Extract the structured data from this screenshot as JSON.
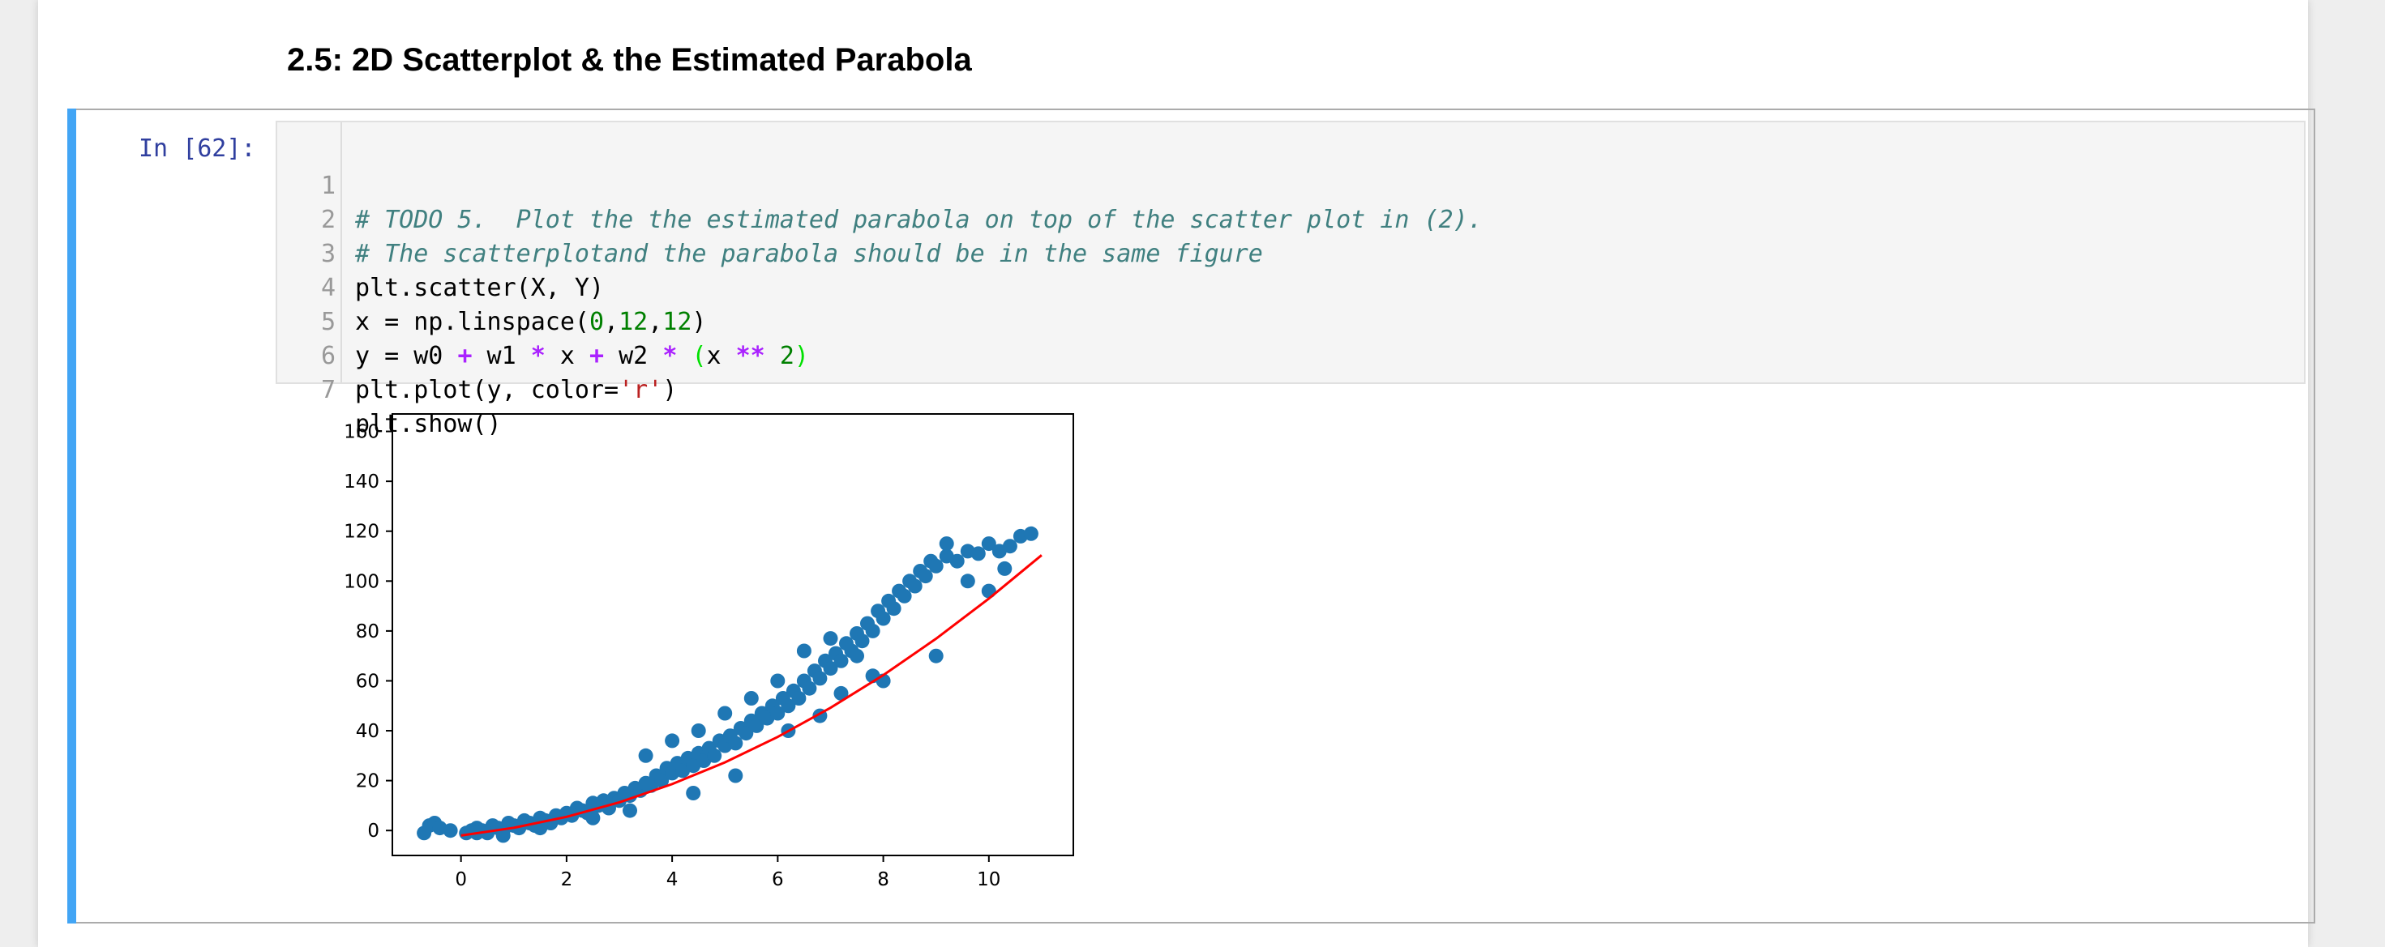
{
  "notebook": {
    "heading": "2.5: 2D Scatterplot & the Estimated Parabola",
    "cell": {
      "prompt": "In [62]:",
      "line_numbers": [
        "1",
        "2",
        "3",
        "4",
        "5",
        "6",
        "7"
      ],
      "code": {
        "line1": "# TODO 5.  Plot the the estimated parabola on top of the scatter plot in (2).",
        "line2": "# The scatterplotand the parabola should be in the same figure",
        "line3": "plt.scatter(X, Y)",
        "line4": {
          "a": "x = np.linspace(",
          "n1": "0",
          "c1": ",",
          "n2": "12",
          "c2": ",",
          "n3": "12",
          "b": ")"
        },
        "line5": {
          "a": "y = w0 ",
          "op1": "+",
          "b": " w1 ",
          "op2": "*",
          "c": " x ",
          "op3": "+",
          "d": " w2 ",
          "op4": "*",
          "e": " ",
          "p1": "(",
          "f": "x ",
          "op5": "**",
          "g": " ",
          "n": "2",
          "p2": ")"
        },
        "line6": {
          "a": "plt.plot(y, color=",
          "s": "'r'",
          "b": ")"
        },
        "line7": "plt.show()"
      }
    }
  },
  "chart_data": {
    "type": "scatter",
    "title": "",
    "xlabel": "",
    "ylabel": "",
    "xlim": [
      -1.3,
      11.6
    ],
    "ylim": [
      -10,
      167
    ],
    "xticks": [
      0,
      2,
      4,
      6,
      8,
      10
    ],
    "yticks": [
      0,
      20,
      40,
      60,
      80,
      100,
      120,
      140,
      160
    ],
    "grid": false,
    "colors": {
      "scatter": "#1f77b4",
      "line": "#ff0000"
    },
    "series": [
      {
        "kind": "scatter",
        "points": [
          [
            -0.7,
            -1
          ],
          [
            -0.6,
            2
          ],
          [
            -0.5,
            3
          ],
          [
            -0.4,
            1
          ],
          [
            -0.2,
            0
          ],
          [
            0.1,
            -1
          ],
          [
            0.2,
            0
          ],
          [
            0.3,
            1
          ],
          [
            0.4,
            0
          ],
          [
            0.5,
            -1
          ],
          [
            0.6,
            2
          ],
          [
            0.7,
            1
          ],
          [
            0.8,
            0
          ],
          [
            0.9,
            3
          ],
          [
            1.0,
            2
          ],
          [
            1.1,
            1
          ],
          [
            1.2,
            4
          ],
          [
            1.3,
            3
          ],
          [
            1.4,
            2
          ],
          [
            1.5,
            5
          ],
          [
            1.6,
            4
          ],
          [
            1.7,
            3
          ],
          [
            1.8,
            6
          ],
          [
            1.9,
            5
          ],
          [
            2.0,
            7
          ],
          [
            2.1,
            6
          ],
          [
            2.2,
            9
          ],
          [
            2.3,
            8
          ],
          [
            2.4,
            7
          ],
          [
            2.5,
            11
          ],
          [
            2.6,
            10
          ],
          [
            2.7,
            12
          ],
          [
            2.8,
            9
          ],
          [
            2.9,
            13
          ],
          [
            3.0,
            12
          ],
          [
            3.1,
            15
          ],
          [
            3.2,
            14
          ],
          [
            3.3,
            17
          ],
          [
            3.4,
            16
          ],
          [
            3.5,
            19
          ],
          [
            3.6,
            18
          ],
          [
            3.7,
            22
          ],
          [
            3.8,
            20
          ],
          [
            3.9,
            25
          ],
          [
            4.0,
            23
          ],
          [
            4.1,
            27
          ],
          [
            4.2,
            24
          ],
          [
            4.3,
            29
          ],
          [
            4.4,
            26
          ],
          [
            4.5,
            31
          ],
          [
            4.6,
            28
          ],
          [
            4.7,
            33
          ],
          [
            4.8,
            30
          ],
          [
            4.9,
            36
          ],
          [
            5.0,
            34
          ],
          [
            5.1,
            38
          ],
          [
            5.2,
            35
          ],
          [
            5.3,
            41
          ],
          [
            5.4,
            39
          ],
          [
            5.5,
            44
          ],
          [
            5.6,
            42
          ],
          [
            5.7,
            47
          ],
          [
            5.8,
            45
          ],
          [
            5.9,
            50
          ],
          [
            6.0,
            47
          ],
          [
            6.1,
            53
          ],
          [
            6.2,
            50
          ],
          [
            6.3,
            56
          ],
          [
            6.4,
            53
          ],
          [
            6.5,
            60
          ],
          [
            6.6,
            57
          ],
          [
            6.7,
            64
          ],
          [
            6.8,
            61
          ],
          [
            6.9,
            68
          ],
          [
            7.0,
            65
          ],
          [
            7.1,
            71
          ],
          [
            7.2,
            68
          ],
          [
            7.3,
            75
          ],
          [
            7.4,
            72
          ],
          [
            7.5,
            79
          ],
          [
            7.6,
            76
          ],
          [
            7.7,
            83
          ],
          [
            7.8,
            80
          ],
          [
            7.9,
            88
          ],
          [
            8.0,
            85
          ],
          [
            8.1,
            92
          ],
          [
            8.2,
            89
          ],
          [
            8.3,
            96
          ],
          [
            8.4,
            94
          ],
          [
            8.5,
            100
          ],
          [
            8.6,
            98
          ],
          [
            8.7,
            104
          ],
          [
            8.8,
            102
          ],
          [
            8.9,
            108
          ],
          [
            9.0,
            106
          ],
          [
            9.2,
            110
          ],
          [
            9.4,
            108
          ],
          [
            9.6,
            112
          ],
          [
            9.8,
            111
          ],
          [
            10.0,
            115
          ],
          [
            10.2,
            112
          ],
          [
            10.4,
            114
          ],
          [
            10.6,
            118
          ],
          [
            10.8,
            119
          ],
          [
            3.5,
            30
          ],
          [
            4.0,
            36
          ],
          [
            4.5,
            40
          ],
          [
            5.0,
            47
          ],
          [
            5.5,
            53
          ],
          [
            6.0,
            60
          ],
          [
            6.5,
            72
          ],
          [
            7.0,
            77
          ],
          [
            7.5,
            70
          ],
          [
            8.0,
            60
          ],
          [
            9.0,
            70
          ],
          [
            9.2,
            115
          ],
          [
            9.6,
            100
          ],
          [
            10.0,
            96
          ],
          [
            10.3,
            105
          ],
          [
            5.2,
            22
          ],
          [
            4.4,
            15
          ],
          [
            3.2,
            8
          ],
          [
            2.5,
            5
          ],
          [
            1.5,
            1
          ],
          [
            0.8,
            -2
          ],
          [
            0.3,
            -1
          ],
          [
            6.2,
            40
          ],
          [
            6.8,
            46
          ],
          [
            7.2,
            55
          ],
          [
            7.8,
            62
          ]
        ]
      },
      {
        "kind": "line",
        "x": [
          0,
          1,
          2,
          3,
          4,
          5,
          6,
          7,
          8,
          9,
          10,
          11
        ],
        "y": [
          -2.0,
          1.1,
          5.5,
          11.3,
          18.6,
          27.3,
          37.5,
          49.2,
          62.3,
          76.9,
          93.0,
          110.4
        ]
      }
    ]
  }
}
